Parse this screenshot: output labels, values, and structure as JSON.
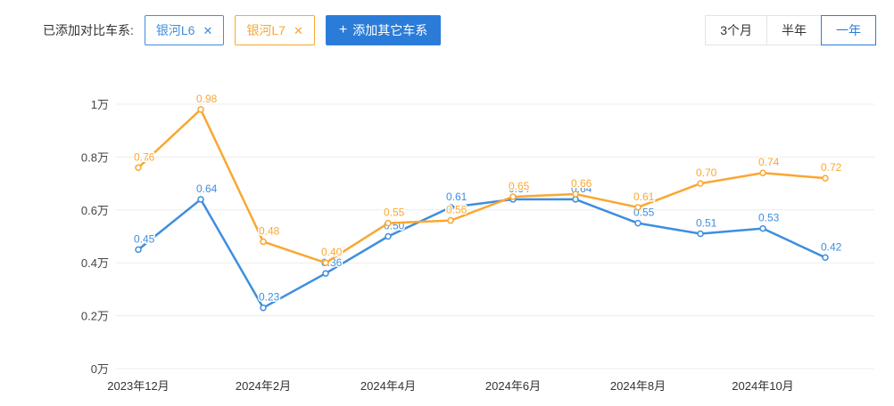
{
  "header": {
    "label": "已添加对比车系:",
    "tags": [
      {
        "label": "银河L6",
        "close_glyph": "✕",
        "color": "#3e8ede"
      },
      {
        "label": "银河L7",
        "close_glyph": "✕",
        "color": "#faa732"
      }
    ],
    "add_button": {
      "plus_glyph": "+",
      "label": "添加其它车系",
      "bg": "#2b7cd9"
    },
    "range_buttons": [
      {
        "label": "3个月",
        "selected": false
      },
      {
        "label": "半年",
        "selected": false
      },
      {
        "label": "一年",
        "selected": true
      }
    ],
    "selected_color": "#2b7cd9"
  },
  "chart_data": {
    "type": "line",
    "title": "",
    "xlabel": "",
    "ylabel": "",
    "unit": "万",
    "ylim": [
      0,
      1
    ],
    "grid": true,
    "legend_position": "none",
    "y_tick_labels_bottom_to_top": [
      "0万",
      "0.2万",
      "0.4万",
      "0.6万",
      "0.8万",
      "1万"
    ],
    "x_tick_labels": [
      "2023年12月",
      "2024年2月",
      "2024年4月",
      "2024年6月",
      "2024年8月",
      "2024年10月"
    ],
    "x_tick_indices": [
      0,
      2,
      4,
      6,
      8,
      10
    ],
    "n_points": 12,
    "series": [
      {
        "name": "银河L6",
        "color": "#3e8ede",
        "values": [
          0.45,
          0.64,
          0.23,
          0.36,
          0.5,
          0.61,
          0.64,
          0.64,
          0.55,
          0.51,
          0.53,
          0.42
        ],
        "point_labels": [
          "0.45",
          "0.64",
          "0.23",
          "0.36",
          "0.50",
          "0.61",
          "0.64",
          "0.64",
          "0.55",
          "0.51",
          "0.53",
          "0.42"
        ]
      },
      {
        "name": "银河L7",
        "color": "#faa732",
        "values": [
          0.76,
          0.98,
          0.48,
          0.4,
          0.55,
          0.56,
          0.65,
          0.66,
          0.61,
          0.7,
          0.74,
          0.72
        ],
        "point_labels": [
          "0.76",
          "0.98",
          "0.48",
          "0.40",
          "0.55",
          "0.56",
          "0.65",
          "0.66",
          "0.61",
          "0.70",
          "0.74",
          "0.72"
        ]
      }
    ],
    "colors": {
      "grid_line": "#ececec",
      "axis_text": "#454545"
    }
  }
}
